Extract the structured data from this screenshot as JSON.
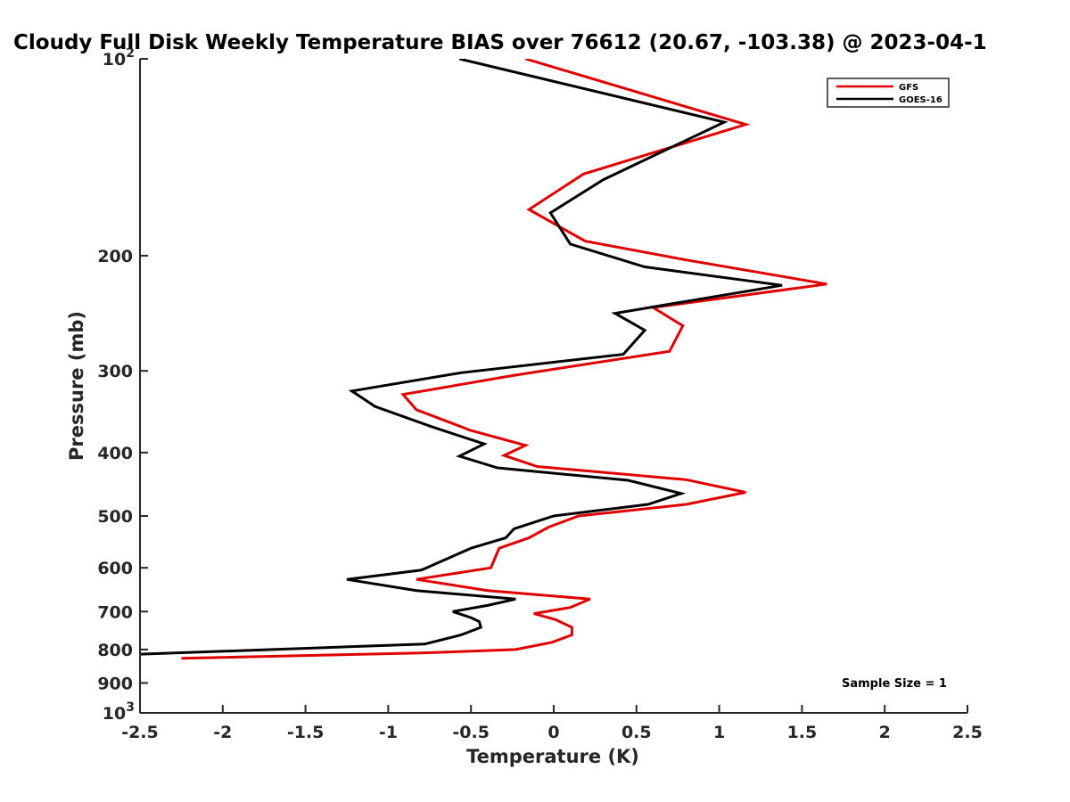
{
  "chart_data": {
    "type": "line",
    "title": "Cloudy Full Disk Weekly Temperature BIAS over 76612 (20.67, -103.38) @ 2023-04-1",
    "xlabel": "Temperature (K)",
    "ylabel": "Pressure (mb)",
    "xlim": [
      -2.5,
      2.5
    ],
    "ylim": [
      100,
      1000
    ],
    "y_scale": "log",
    "y_reversed": true,
    "grid": false,
    "legend_position": "top-right",
    "x_ticks": [
      "-2.5",
      "-2",
      "-1.5",
      "-1",
      "-0.5",
      "0",
      "0.5",
      "1",
      "1.5",
      "2",
      "2.5"
    ],
    "x_tick_values": [
      -2.5,
      -2,
      -1.5,
      -1,
      -0.5,
      0,
      0.5,
      1,
      1.5,
      2,
      2.5
    ],
    "y_ticks": [
      {
        "value": 100,
        "base": "10",
        "exp": "2"
      },
      {
        "value": 200,
        "label": "200"
      },
      {
        "value": 300,
        "label": "300"
      },
      {
        "value": 400,
        "label": "400"
      },
      {
        "value": 500,
        "label": "500"
      },
      {
        "value": 600,
        "label": "600"
      },
      {
        "value": 700,
        "label": "700"
      },
      {
        "value": 800,
        "label": "800"
      },
      {
        "value": 900,
        "label": "900"
      },
      {
        "value": 1000,
        "base": "10",
        "exp": "3"
      }
    ],
    "annotation": "Sample Size = 1",
    "series": [
      {
        "name": "GFS",
        "color": "#e00000",
        "points": [
          [
            -0.17,
            100
          ],
          [
            1.16,
            126
          ],
          [
            0.18,
            150
          ],
          [
            -0.15,
            170
          ],
          [
            0.19,
            190
          ],
          [
            0.8,
            203
          ],
          [
            1.65,
            221
          ],
          [
            0.6,
            240
          ],
          [
            0.78,
            256
          ],
          [
            0.7,
            280
          ],
          [
            -0.25,
            305
          ],
          [
            -0.91,
            326
          ],
          [
            -0.83,
            344
          ],
          [
            -0.5,
            370
          ],
          [
            -0.17,
            390
          ],
          [
            -0.3,
            404
          ],
          [
            -0.1,
            420
          ],
          [
            0.8,
            440
          ],
          [
            1.16,
            460
          ],
          [
            0.8,
            480
          ],
          [
            0.15,
            500
          ],
          [
            -0.03,
            520
          ],
          [
            -0.15,
            540
          ],
          [
            -0.33,
            560
          ],
          [
            -0.38,
            600
          ],
          [
            -0.83,
            625
          ],
          [
            -0.4,
            650
          ],
          [
            0.22,
            670
          ],
          [
            0.1,
            690
          ],
          [
            -0.12,
            705
          ],
          [
            0.01,
            720
          ],
          [
            0.11,
            740
          ],
          [
            0.11,
            760
          ],
          [
            -0.01,
            780
          ],
          [
            -0.23,
            800
          ],
          [
            -0.8,
            810
          ],
          [
            -2.25,
            825
          ]
        ]
      },
      {
        "name": "GOES-16",
        "color": "#000000",
        "points": [
          [
            -0.57,
            100
          ],
          [
            1.03,
            125
          ],
          [
            0.3,
            153
          ],
          [
            -0.02,
            172
          ],
          [
            0.1,
            192
          ],
          [
            0.55,
            208
          ],
          [
            1.38,
            222
          ],
          [
            0.37,
            245
          ],
          [
            0.55,
            260
          ],
          [
            0.42,
            283
          ],
          [
            -0.56,
            302
          ],
          [
            -1.22,
            322
          ],
          [
            -1.08,
            340
          ],
          [
            -0.74,
            365
          ],
          [
            -0.42,
            388
          ],
          [
            -0.57,
            405
          ],
          [
            -0.34,
            422
          ],
          [
            0.45,
            441
          ],
          [
            0.77,
            462
          ],
          [
            0.57,
            480
          ],
          [
            0.0,
            500
          ],
          [
            -0.24,
            523
          ],
          [
            -0.29,
            540
          ],
          [
            -0.5,
            560
          ],
          [
            -0.8,
            605
          ],
          [
            -1.25,
            625
          ],
          [
            -0.83,
            650
          ],
          [
            -0.23,
            670
          ],
          [
            -0.4,
            685
          ],
          [
            -0.61,
            700
          ],
          [
            -0.5,
            715
          ],
          [
            -0.45,
            725
          ],
          [
            -0.44,
            740
          ],
          [
            -0.56,
            760
          ],
          [
            -0.78,
            785
          ],
          [
            -2.6,
            815
          ]
        ]
      }
    ]
  }
}
